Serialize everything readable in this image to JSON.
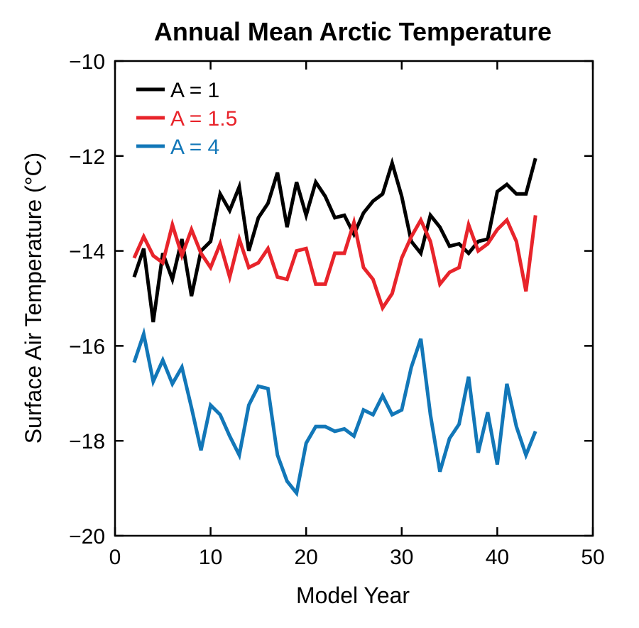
{
  "chart_data": {
    "type": "line",
    "title": "Annual Mean Arctic Temperature",
    "xlabel": "Model Year",
    "ylabel": "Surface Air Temperature (°C)",
    "xlim": [
      0,
      50
    ],
    "ylim": [
      -20,
      -10
    ],
    "xticks": [
      0,
      10,
      20,
      30,
      40,
      50
    ],
    "yticks": [
      -20,
      -18,
      -16,
      -14,
      -12,
      -10
    ],
    "grid": false,
    "legend_position": "top-left",
    "x": [
      2,
      3,
      4,
      5,
      6,
      7,
      8,
      9,
      10,
      11,
      12,
      13,
      14,
      15,
      16,
      17,
      18,
      19,
      20,
      21,
      22,
      23,
      24,
      25,
      26,
      27,
      28,
      29,
      30,
      31,
      32,
      33,
      34,
      35,
      36,
      37,
      38,
      39,
      40,
      41,
      42,
      43,
      44
    ],
    "series": [
      {
        "name": "A = 1",
        "color": "#000000",
        "values": [
          -14.55,
          -13.95,
          -15.5,
          -14.05,
          -14.6,
          -13.75,
          -14.95,
          -14.0,
          -13.8,
          -12.8,
          -13.15,
          -12.65,
          -14.0,
          -13.3,
          -13.0,
          -12.35,
          -13.5,
          -12.55,
          -13.25,
          -12.55,
          -12.85,
          -13.3,
          -13.25,
          -13.65,
          -13.2,
          -12.95,
          -12.8,
          -12.15,
          -12.85,
          -13.8,
          -14.05,
          -13.25,
          -13.5,
          -13.9,
          -13.85,
          -14.05,
          -13.8,
          -13.75,
          -12.75,
          -12.6,
          -12.8,
          -12.8,
          -12.05
        ]
      },
      {
        "name": "A = 1.5",
        "color": "#e8242b",
        "values": [
          -14.15,
          -13.7,
          -14.1,
          -14.25,
          -13.45,
          -14.1,
          -13.55,
          -14.05,
          -14.35,
          -13.85,
          -14.55,
          -13.75,
          -14.35,
          -14.25,
          -13.95,
          -14.55,
          -14.6,
          -14.0,
          -13.95,
          -14.7,
          -14.7,
          -14.05,
          -14.05,
          -13.4,
          -14.35,
          -14.6,
          -15.2,
          -14.9,
          -14.15,
          -13.7,
          -13.35,
          -13.8,
          -14.7,
          -14.45,
          -14.35,
          -13.45,
          -14.0,
          -13.85,
          -13.55,
          -13.35,
          -13.8,
          -14.85,
          -13.25
        ]
      },
      {
        "name": "A = 4",
        "color": "#1277b8",
        "values": [
          -16.35,
          -15.75,
          -16.75,
          -16.3,
          -16.8,
          -16.45,
          -17.3,
          -18.2,
          -17.25,
          -17.45,
          -17.9,
          -18.3,
          -17.25,
          -16.85,
          -16.9,
          -18.3,
          -18.85,
          -19.1,
          -18.05,
          -17.7,
          -17.7,
          -17.8,
          -17.75,
          -17.9,
          -17.35,
          -17.45,
          -17.05,
          -17.45,
          -17.35,
          -16.45,
          -15.85,
          -17.45,
          -18.65,
          -17.95,
          -17.65,
          -16.65,
          -18.25,
          -17.4,
          -18.5,
          -16.8,
          -17.7,
          -18.3,
          -17.8
        ]
      }
    ]
  }
}
